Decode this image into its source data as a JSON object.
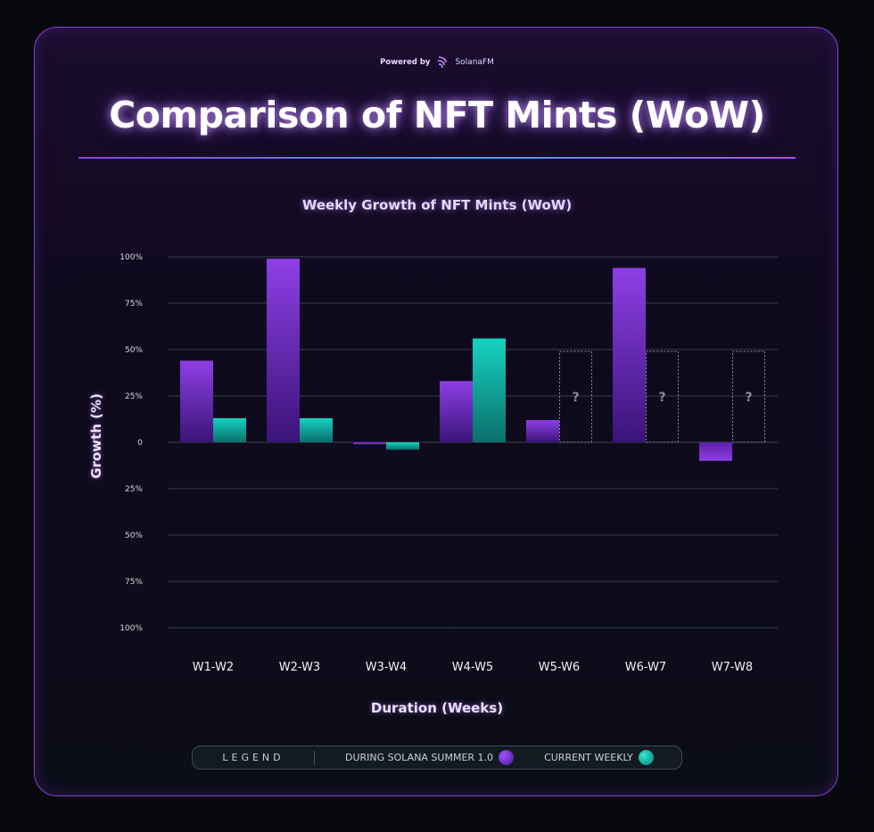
{
  "header": {
    "powered_by": "Powered by",
    "brand": "SolanaFM",
    "title": "Comparison of NFT Mints (WoW)"
  },
  "legend": {
    "title": "LEGEND",
    "items": [
      "DURING SOLANA SUMMER 1.0",
      "CURRENT WEEKLY"
    ]
  },
  "colors": {
    "series1": "#8e3fe6",
    "series2": "#16d2c0"
  },
  "chart_data": {
    "type": "bar",
    "title": "Weekly Growth of NFT Mints (WoW)",
    "xlabel": "Duration (Weeks)",
    "ylabel": "Growth (%)",
    "ylim": [
      -100,
      100
    ],
    "yticks": [
      100,
      75,
      50,
      25,
      0,
      -25,
      -50,
      -75,
      -100
    ],
    "ytick_labels": [
      "100%",
      "75%",
      "50%",
      "25%",
      "0",
      "25%",
      "50%",
      "75%",
      "100%"
    ],
    "grid": true,
    "legend_position": "bottom",
    "categories": [
      "W1-W2",
      "W2-W3",
      "W3-W4",
      "W4-W5",
      "W5-W6",
      "W6-W7",
      "W7-W8"
    ],
    "series": [
      {
        "name": "DURING SOLANA SUMMER 1.0",
        "values": [
          44,
          99,
          -1,
          33,
          12,
          94,
          -10
        ]
      },
      {
        "name": "CURRENT WEEKLY",
        "values": [
          13,
          13,
          -4,
          56,
          null,
          null,
          null
        ]
      }
    ],
    "unknown_placeholder": {
      "label": "?",
      "value": 49
    }
  }
}
